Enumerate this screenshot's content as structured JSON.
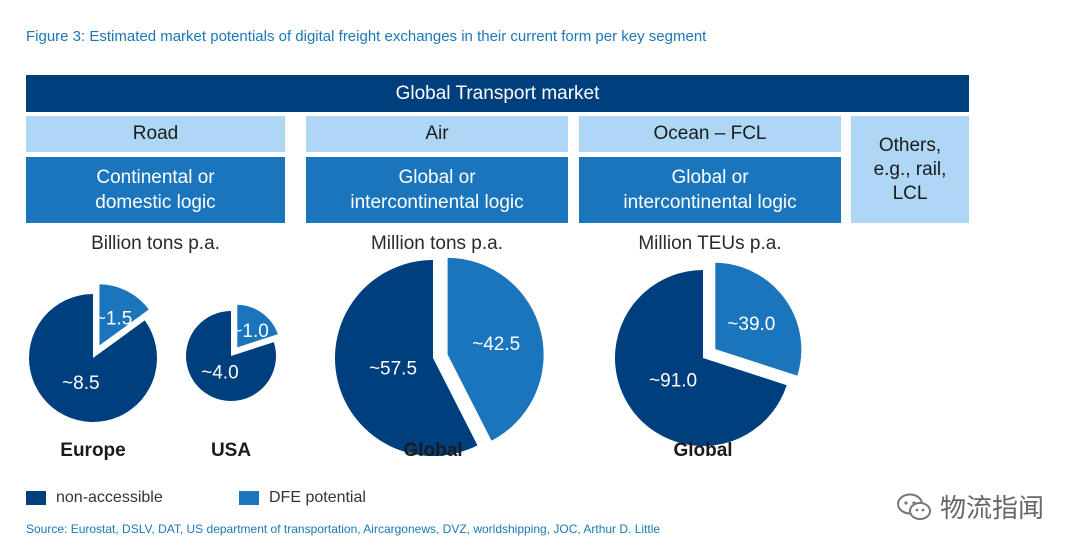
{
  "title": "Figure 3: Estimated market potentials of digital freight exchanges in their current form per key segment",
  "header": "Global Transport market",
  "segments": [
    {
      "name": "Road",
      "logic": [
        "Continental or",
        "domestic logic"
      ],
      "unit": "Billion tons p.a."
    },
    {
      "name": "Air",
      "logic": [
        "Global or",
        "intercontinental logic"
      ],
      "unit": "Million tons p.a."
    },
    {
      "name": "Ocean – FCL",
      "logic": [
        "Global or",
        "intercontinental logic"
      ],
      "unit": "Million TEUs p.a."
    }
  ],
  "others": [
    "Others,",
    "e.g., rail,",
    "LCL"
  ],
  "chart_data": {
    "type": "pie",
    "title": "Estimated market potentials of digital freight exchanges",
    "series_names": [
      "non-accessible",
      "DFE potential"
    ],
    "pies": [
      {
        "segment": "Road",
        "label": "Europe",
        "non_accessible": 8.5,
        "dfe": 1.5,
        "non_accessible_label": "~8.5",
        "dfe_label": "~1.5"
      },
      {
        "segment": "Road",
        "label": "USA",
        "non_accessible": 4.0,
        "dfe": 1.0,
        "non_accessible_label": "~4.0",
        "dfe_label": "~1.0"
      },
      {
        "segment": "Air",
        "label": "Global",
        "non_accessible": 57.5,
        "dfe": 42.5,
        "non_accessible_label": "~57.5",
        "dfe_label": "~42.5"
      },
      {
        "segment": "Ocean – FCL",
        "label": "Global",
        "non_accessible": 91.0,
        "dfe": 39.0,
        "non_accessible_label": "~91.0",
        "dfe_label": "~39.0"
      }
    ]
  },
  "legend": [
    {
      "label": "non-accessible",
      "color": "#003f7d"
    },
    {
      "label": "DFE potential",
      "color": "#1a75bc"
    }
  ],
  "colors": {
    "dark": "#003f7d",
    "medium": "#1a75bc",
    "light": "#add7f4",
    "accent_text": "#1a78b8"
  },
  "source": "Source: Eurostat, DSLV, DAT, US department of transportation, Aircargonews, DVZ, worldshipping, JOC, Arthur D. Little",
  "watermark": "物流指闻"
}
